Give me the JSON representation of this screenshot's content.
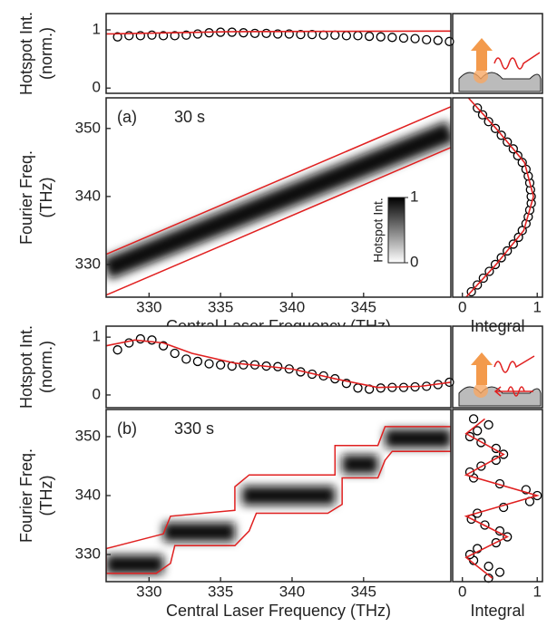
{
  "chart_data": [
    {
      "type": "scatter",
      "ylabel": [
        "Hotspot Int.",
        "(norm.)"
      ],
      "xlim": [
        327,
        351.1
      ],
      "ylim": [
        -0.09,
        1.28
      ],
      "yticks": [
        0,
        1
      ],
      "series": [
        {
          "color": "#000000",
          "marker": "circle",
          "x": [
            327.8,
            328.6,
            329.4,
            330.2,
            331,
            331.8,
            332.6,
            333.4,
            334.2,
            335,
            335.8,
            336.6,
            337.4,
            338.2,
            339,
            339.8,
            340.6,
            341.4,
            342.2,
            343,
            343.8,
            344.6,
            345.4,
            346.2,
            347,
            347.8,
            348.6,
            349.4,
            350.2,
            351
          ],
          "values": [
            0.88,
            0.9,
            0.9,
            0.91,
            0.9,
            0.9,
            0.91,
            0.93,
            0.95,
            0.96,
            0.96,
            0.95,
            0.94,
            0.94,
            0.93,
            0.93,
            0.92,
            0.92,
            0.91,
            0.91,
            0.9,
            0.9,
            0.89,
            0.88,
            0.87,
            0.86,
            0.85,
            0.83,
            0.82,
            0.8
          ]
        },
        {
          "color": "#e02020",
          "marker": "line",
          "x": [
            327,
            336,
            351.1
          ],
          "values": [
            0.93,
            0.97,
            0.98
          ]
        }
      ]
    },
    {
      "type": "heatmap",
      "panel_label": "(a)",
      "time": "30 s",
      "ylabel": [
        "Fourier Freq.",
        "(THz)"
      ],
      "xlabel": "Central Laser Frequency (THz)",
      "xlim": [
        327,
        351.1
      ],
      "xticks": [
        330,
        335,
        340,
        345
      ],
      "ylim": [
        325.2,
        354.5
      ],
      "yticks": [
        330,
        340,
        350
      ],
      "band_width": 3.2,
      "ridge": {
        "x": [
          327,
          351.1
        ],
        "y": [
          329.3,
          349.6
        ]
      },
      "lines": [
        {
          "color": "#e02020",
          "x": [
            327,
            351.1
          ],
          "y": [
            331.5,
            353.2
          ]
        },
        {
          "color": "#e02020",
          "x": [
            327,
            351.1
          ],
          "y": [
            325.5,
            347.2
          ]
        }
      ],
      "colorbar": {
        "label": "Hotspot Int.",
        "ticks": [
          0,
          1
        ]
      }
    },
    {
      "type": "profile",
      "xlabel": "Integral",
      "xlim": [
        -0.13,
        1.07
      ],
      "xticks": [
        0,
        1
      ],
      "ylim": [
        325.2,
        354.5
      ],
      "series": [
        {
          "color": "#000000",
          "marker": "circle",
          "y": [
            326,
            327,
            328,
            329,
            330,
            331,
            332,
            333,
            334,
            335,
            336,
            337,
            338,
            339,
            340,
            341,
            342,
            343,
            344,
            345,
            346,
            347,
            348,
            349,
            350,
            351,
            352,
            353
          ],
          "values": [
            0.12,
            0.2,
            0.28,
            0.36,
            0.44,
            0.52,
            0.6,
            0.68,
            0.75,
            0.8,
            0.85,
            0.88,
            0.9,
            0.92,
            0.92,
            0.91,
            0.9,
            0.88,
            0.85,
            0.8,
            0.74,
            0.68,
            0.6,
            0.52,
            0.44,
            0.35,
            0.27,
            0.2
          ]
        },
        {
          "color": "#e02020",
          "marker": "line",
          "y": [
            325.2,
            330,
            335,
            340,
            345,
            350,
            354.5
          ],
          "values": [
            0.05,
            0.45,
            0.82,
            0.95,
            0.83,
            0.45,
            0.08
          ]
        }
      ]
    },
    {
      "type": "scatter",
      "ylabel": [
        "Hotspot Int.",
        "(norm.)"
      ],
      "xlim": [
        327,
        351.1
      ],
      "ylim": [
        -0.22,
        1.19
      ],
      "yticks": [
        0,
        1
      ],
      "series": [
        {
          "color": "#000000",
          "marker": "circle",
          "x": [
            327.8,
            328.6,
            329.4,
            330.2,
            331,
            331.8,
            332.6,
            333.4,
            334.2,
            335,
            335.8,
            336.6,
            337.4,
            338.2,
            339,
            339.8,
            340.6,
            341.4,
            342.2,
            343,
            343.8,
            344.6,
            345.4,
            346.2,
            347,
            347.8,
            348.6,
            349.4,
            350.2,
            351
          ],
          "values": [
            0.78,
            0.9,
            0.97,
            0.95,
            0.85,
            0.72,
            0.62,
            0.58,
            0.54,
            0.52,
            0.5,
            0.52,
            0.52,
            0.5,
            0.49,
            0.45,
            0.4,
            0.36,
            0.33,
            0.28,
            0.2,
            0.12,
            0.1,
            0.12,
            0.13,
            0.13,
            0.14,
            0.15,
            0.18,
            0.22
          ]
        },
        {
          "color": "#e02020",
          "marker": "line",
          "x": [
            327,
            329,
            331,
            333,
            336,
            340,
            343,
            346,
            349,
            351.1
          ],
          "values": [
            0.85,
            0.95,
            0.9,
            0.72,
            0.55,
            0.45,
            0.28,
            0.13,
            0.15,
            0.22
          ]
        }
      ]
    },
    {
      "type": "heatmap",
      "panel_label": "(b)",
      "time": "330 s",
      "ylabel": [
        "Fourier Freq.",
        "(THz)"
      ],
      "xlabel": "Central Laser Frequency (THz)",
      "xlim": [
        327,
        351.1
      ],
      "xticks": [
        330,
        335,
        340,
        345
      ],
      "ylim": [
        325.4,
        354.6
      ],
      "yticks": [
        330,
        340,
        350
      ],
      "band_width": 3.2,
      "steps": [
        {
          "x": [
            327,
            331
          ],
          "y": 328.3
        },
        {
          "x": [
            331,
            336
          ],
          "y": 333.8
        },
        {
          "x": [
            336.5,
            343
          ],
          "y": 340
        },
        {
          "x": [
            343.5,
            346
          ],
          "y": 345.3
        },
        {
          "x": [
            346.5,
            351.1
          ],
          "y": 349.7
        }
      ],
      "lines": [
        {
          "color": "#e02020",
          "closed": true,
          "x": [
            327,
            330.5,
            331.5,
            331.8,
            336,
            337,
            337.5,
            342.5,
            343.5,
            343.5,
            346,
            346.5,
            347,
            351.1,
            351.1,
            346.5,
            346,
            343,
            343,
            337,
            336,
            336,
            331.5,
            331,
            327
          ],
          "y": [
            326.8,
            326.8,
            328.5,
            331.5,
            331.5,
            334,
            337,
            337,
            338.5,
            343,
            343,
            346,
            347.5,
            347.5,
            351.7,
            351.7,
            348.5,
            348.5,
            343.5,
            343.5,
            341.5,
            337.5,
            336.5,
            333.5,
            331
          ]
        }
      ]
    },
    {
      "type": "profile",
      "xlabel": "Integral",
      "xlim": [
        -0.13,
        1.07
      ],
      "xticks": [
        0,
        1
      ],
      "ylim": [
        325.4,
        354.6
      ],
      "series": [
        {
          "color": "#000000",
          "marker": "circle",
          "y": [
            326,
            327,
            328,
            329,
            330,
            331,
            332,
            333,
            334,
            335,
            336,
            337,
            338,
            339,
            340,
            341,
            342,
            343,
            344,
            345,
            346,
            347,
            348,
            349,
            350,
            351,
            352,
            353
          ],
          "values": [
            0.35,
            0.5,
            0.35,
            0.15,
            0.1,
            0.2,
            0.45,
            0.6,
            0.5,
            0.3,
            0.12,
            0.2,
            0.55,
            0.9,
            1.0,
            0.85,
            0.5,
            0.15,
            0.1,
            0.25,
            0.45,
            0.55,
            0.45,
            0.25,
            0.1,
            0.2,
            0.35,
            0.15
          ]
        },
        {
          "color": "#e02020",
          "marker": "line",
          "y": [
            326,
            329.5,
            333,
            336.5,
            340,
            343.5,
            347,
            350.5,
            353
          ],
          "values": [
            0.4,
            0.05,
            0.6,
            0.05,
            1.0,
            0.05,
            0.55,
            0.05,
            0.3
          ]
        }
      ]
    }
  ]
}
